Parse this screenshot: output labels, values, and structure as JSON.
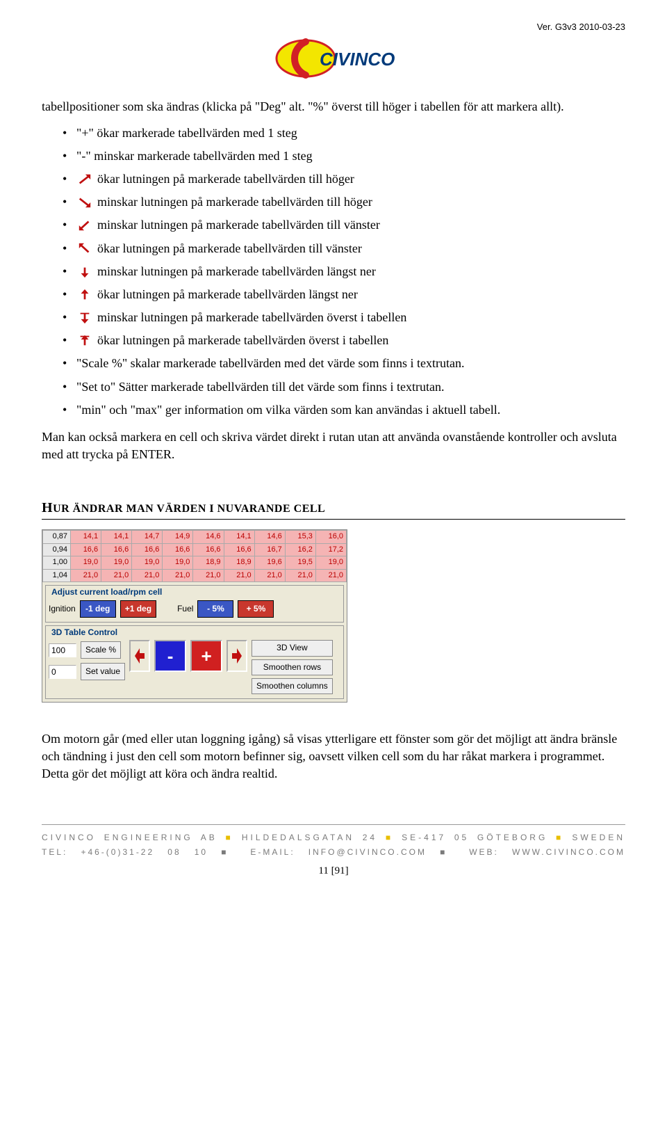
{
  "version": "Ver. G3v3 2010-03-23",
  "logo": {
    "brand": "CIVINCO",
    "bg_color": "#f3e600",
    "accent_color": "#d12026",
    "text_color": "#003a7a"
  },
  "intro": "tabellpositioner som ska ändras (klicka på \"Deg\" alt. \"%\" överst till höger i tabellen för att markera allt).",
  "bullets": [
    {
      "icon": null,
      "text": "\"+\" ökar markerade tabellvärden med 1 steg"
    },
    {
      "icon": null,
      "text": "\"-\" minskar markerade tabellvärden med 1 steg"
    },
    {
      "icon": "arrow-up-right",
      "text": "ökar lutningen på markerade tabellvärden till höger"
    },
    {
      "icon": "arrow-down-right",
      "text": "minskar lutningen på markerade tabellvärden till höger"
    },
    {
      "icon": "arrow-down-left",
      "text": "minskar lutningen på markerade tabellvärden till vänster"
    },
    {
      "icon": "arrow-up-left",
      "text": "ökar lutningen på markerade tabellvärden till vänster"
    },
    {
      "icon": "arrow-down-mid",
      "text": "minskar lutningen på markerade tabellvärden längst ner"
    },
    {
      "icon": "arrow-up-mid",
      "text": "ökar lutningen på markerade tabellvärden längst ner"
    },
    {
      "icon": "arrow-down-top",
      "text": "minskar lutningen på markerade tabellvärden överst i tabellen"
    },
    {
      "icon": "arrow-up-top",
      "text": "ökar lutningen på markerade tabellvärden överst i tabellen"
    },
    {
      "icon": null,
      "text": "\"Scale %\" skalar markerade tabellvärden med det värde som finns i textrutan."
    },
    {
      "icon": null,
      "text": "\"Set to\" Sätter markerade tabellvärden till det värde som finns i textrutan."
    },
    {
      "icon": null,
      "text": "\"min\" och \"max\" ger information om vilka värden som kan användas i aktuell tabell."
    }
  ],
  "after_bullets": "Man kan också markera en cell och skriva värdet direkt i rutan utan att använda ovanstående kontroller och avsluta med att trycka på ENTER.",
  "section_title_big": "H",
  "section_title_rest": "UR ÄNDRAR MAN VÄRDEN I NUVARANDE CELL",
  "ui": {
    "grid": {
      "row_headers": [
        "0,87",
        "0,94",
        "1,00",
        "1,04"
      ],
      "rows": [
        [
          "14,1",
          "14,1",
          "14,7",
          "14,9",
          "14,6",
          "14,1",
          "14,6",
          "15,3",
          "16,0"
        ],
        [
          "16,6",
          "16,6",
          "16,6",
          "16,6",
          "16,6",
          "16,6",
          "16,7",
          "16,2",
          "17,2"
        ],
        [
          "19,0",
          "19,0",
          "19,0",
          "19,0",
          "18,9",
          "18,9",
          "19,6",
          "19,5",
          "19,0"
        ],
        [
          "21,0",
          "21,0",
          "21,0",
          "21,0",
          "21,0",
          "21,0",
          "21,0",
          "21,0",
          "21,0"
        ]
      ],
      "header_bg": "#e8e8e8",
      "cell_bg": "#f5b4b4",
      "cell_color": "#b00000"
    },
    "adjust_panel": {
      "title": "Adjust current load/rpm cell",
      "ignition_label": "Ignition",
      "minus_deg": "-1 deg",
      "plus_deg": "+1 deg",
      "fuel_label": "Fuel",
      "minus_pct": "- 5%",
      "plus_pct": "+ 5%"
    },
    "table_control": {
      "title": "3D Table Control",
      "scale_value": "100",
      "scale_label": "Scale %",
      "set_value": "0",
      "set_label": "Set value",
      "minus": "-",
      "plus": "+",
      "view3d": "3D View",
      "smooth_rows": "Smoothen rows",
      "smooth_cols": "Smoothen columns"
    }
  },
  "closing": "Om motorn går (med eller utan loggning igång) så visas ytterligare ett fönster som gör det möjligt att ändra bränsle och tändning i just den cell som motorn befinner sig, oavsett vilken cell som du har råkat markera i programmet. Detta gör det möjligt att köra och ändra realtid.",
  "footer": {
    "line1_a": "CIVINCO ENGINEERING AB",
    "line1_b": "HILDEDALSGATAN 24",
    "line1_c": "SE-417 05 GÖTEBORG",
    "line1_d": "SWEDEN",
    "line2_a": "TEL: +46-(0)31-22 08 10",
    "line2_b": "E-MAIL: INFO@CIVINCO.COM",
    "line2_c": "WEB: WWW.CIVINCO.COM",
    "page": "11 [91]"
  },
  "icons": {
    "stroke": "#c01010",
    "fill": "#c01010"
  }
}
